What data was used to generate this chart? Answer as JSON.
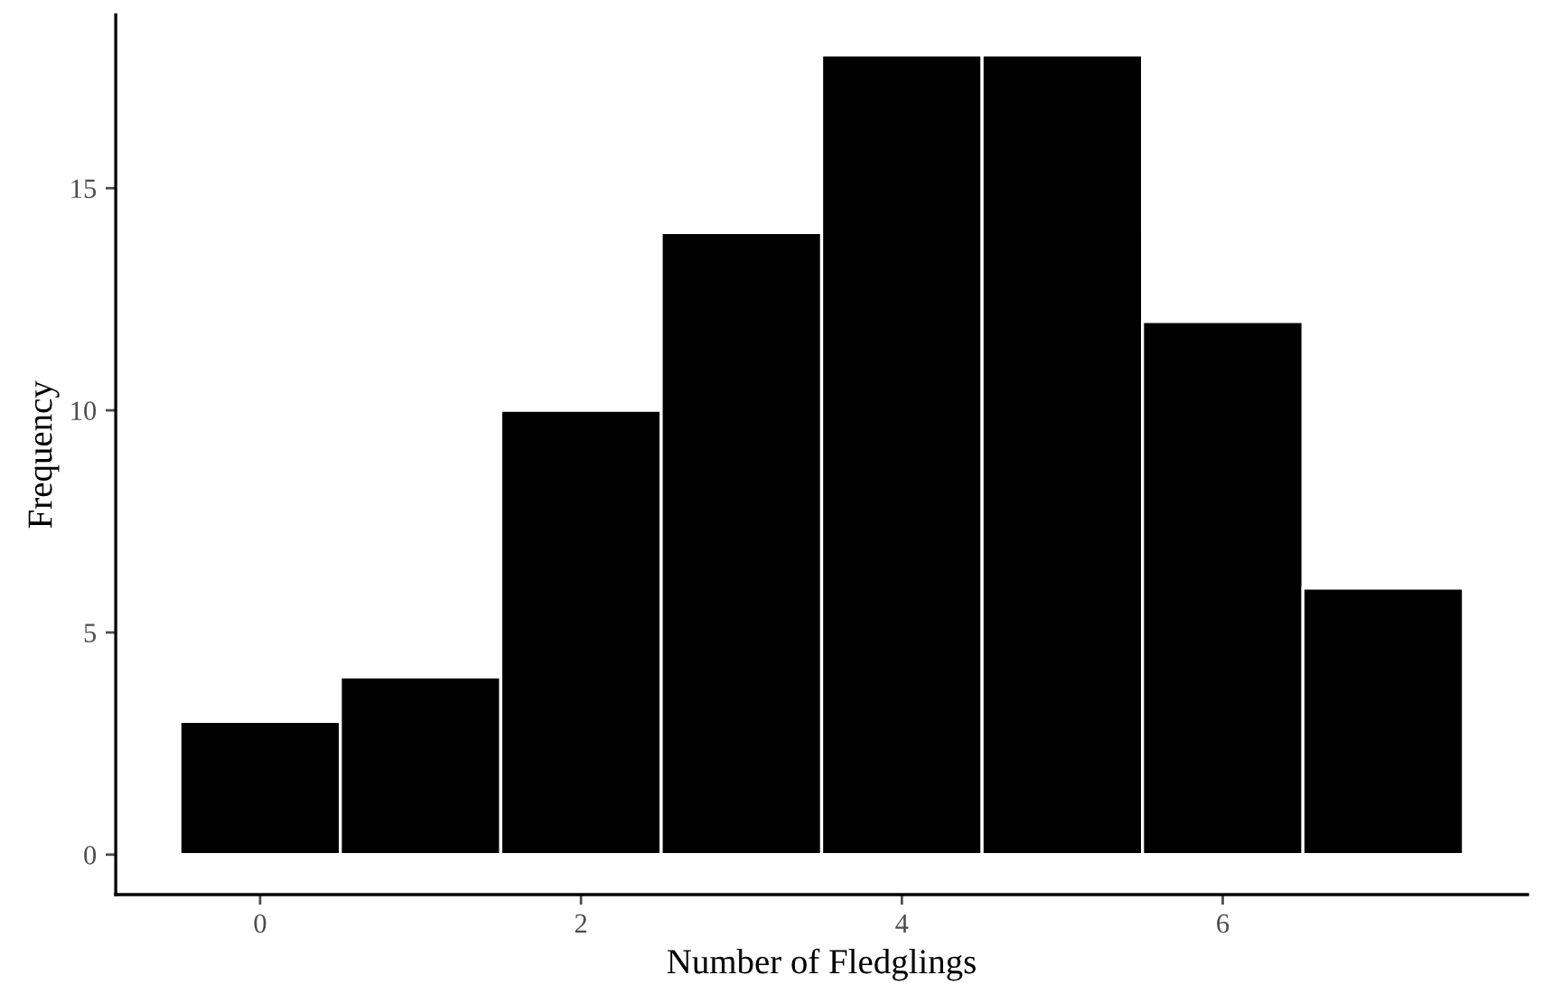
{
  "chart_data": {
    "type": "histogram",
    "xlabel": "Number of Fledglings",
    "ylabel": "Frequency",
    "bins": [
      -0.5,
      0.5,
      1.5,
      2.5,
      3.5,
      4.5,
      5.5,
      6.5,
      7.5
    ],
    "values": [
      3,
      4,
      10,
      14,
      18,
      18,
      12,
      6
    ],
    "color": "#000000",
    "xlim": [
      -0.9,
      7.9
    ],
    "xticks": [
      0,
      2,
      4,
      6
    ],
    "ylim": [
      -0.9,
      18.9
    ],
    "yticks": [
      0,
      5,
      10,
      15
    ],
    "grid": false
  }
}
